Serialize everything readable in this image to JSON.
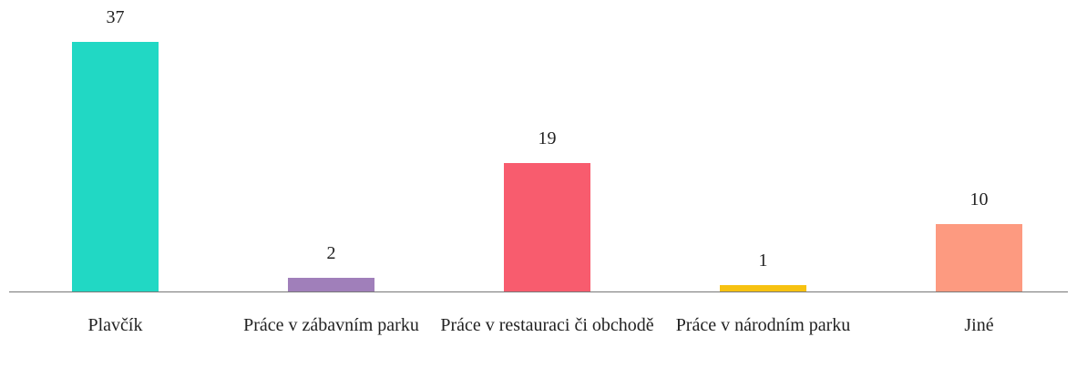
{
  "chart_data": {
    "type": "bar",
    "categories": [
      "Plavčík",
      "Práce v zábavním parku",
      "Práce v restauraci či obchodě",
      "Práce v národním parku",
      "Jiné"
    ],
    "values": [
      37,
      2,
      19,
      1,
      10
    ],
    "colors": [
      "#21d8c4",
      "#a07fba",
      "#f85c6e",
      "#f7c211",
      "#fd9a80"
    ]
  }
}
